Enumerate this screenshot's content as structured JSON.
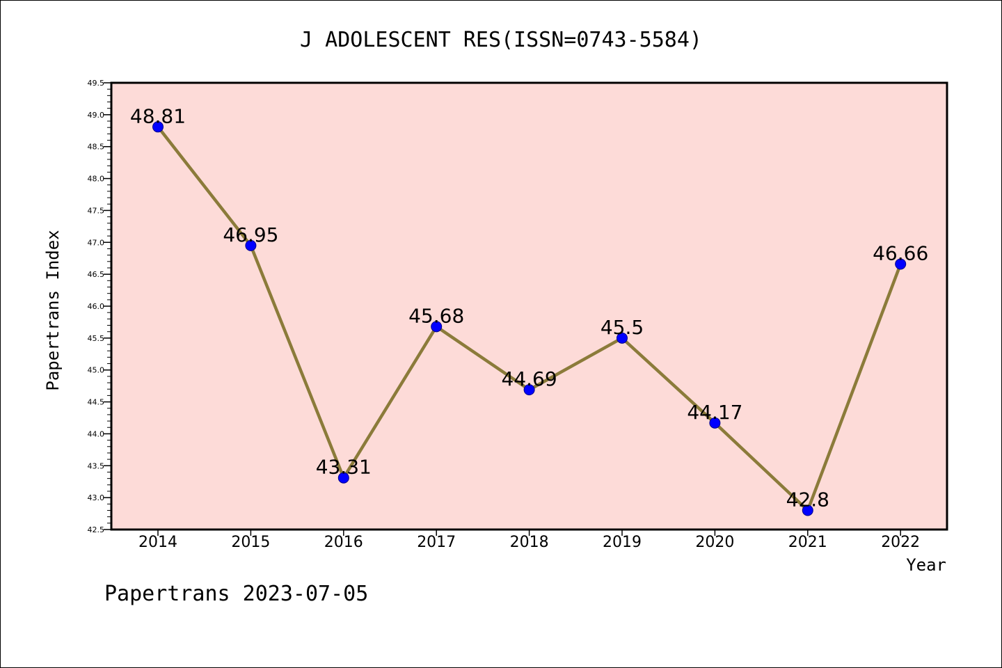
{
  "chart_data": {
    "type": "line",
    "title": "J ADOLESCENT RES(ISSN=0743-5584)",
    "xlabel": "Year",
    "ylabel": "Papertrans Index",
    "categories": [
      "2014",
      "2015",
      "2016",
      "2017",
      "2018",
      "2019",
      "2020",
      "2021",
      "2022"
    ],
    "series": [
      {
        "values": [
          48.81,
          46.95,
          43.31,
          45.68,
          44.69,
          45.5,
          44.17,
          42.8,
          46.66
        ],
        "labels": [
          "48.81",
          "46.95",
          "43.31",
          "45.68",
          "44.69",
          "45.5",
          "44.17",
          "42.8",
          "46.66"
        ]
      }
    ],
    "ylim": [
      42.5,
      49.5
    ],
    "yticks": [
      "42.5",
      "43.0",
      "43.5",
      "44.0",
      "44.5",
      "45.0",
      "45.5",
      "46.0",
      "46.5",
      "47.0",
      "47.5",
      "48.0",
      "48.5",
      "49.0",
      "49.5"
    ],
    "grid": false,
    "legend": "none",
    "colors": {
      "plot_background": "#fddbd8",
      "line": "#8b7b3a",
      "marker": "#0000ff",
      "marker_edge": "#00008b"
    }
  },
  "footer": "Papertrans 2023-07-05"
}
